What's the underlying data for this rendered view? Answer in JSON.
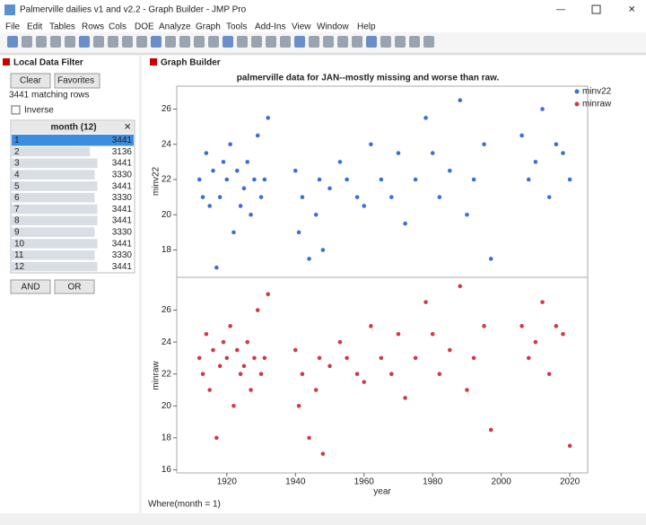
{
  "window": {
    "title": "Palmerville dailies v1 and v2.2 - Graph Builder - JMP Pro",
    "menu": [
      "File",
      "Edit",
      "Tables",
      "Rows",
      "Cols",
      "DOE",
      "Analyze",
      "Graph",
      "Tools",
      "Add-Ins",
      "View",
      "Window",
      "Help"
    ]
  },
  "filter": {
    "header": "Local Data Filter",
    "clear": "Clear",
    "favorites": "Favorites",
    "matching": "3441 matching rows",
    "inverse": "Inverse",
    "column": "month (12)",
    "rows": [
      {
        "level": "1",
        "count": 3441
      },
      {
        "level": "2",
        "count": 3136
      },
      {
        "level": "3",
        "count": 3441
      },
      {
        "level": "4",
        "count": 3330
      },
      {
        "level": "5",
        "count": 3441
      },
      {
        "level": "6",
        "count": 3330
      },
      {
        "level": "7",
        "count": 3441
      },
      {
        "level": "8",
        "count": 3441
      },
      {
        "level": "9",
        "count": 3330
      },
      {
        "level": "10",
        "count": 3441
      },
      {
        "level": "11",
        "count": 3330
      },
      {
        "level": "12",
        "count": 3441
      }
    ],
    "and": "AND",
    "or": "OR"
  },
  "graph_builder": {
    "header": "Graph Builder"
  },
  "status": "Where(month = 1)",
  "chart_data": {
    "type": "scatter",
    "title": "palmerville data for JAN--mostly missing and worse than raw.",
    "x_label": "year",
    "xlim": [
      1905.4,
      2025.2
    ],
    "xticks": [
      1920,
      1940,
      1960,
      1980,
      2000,
      2020
    ],
    "panels": [
      {
        "y_label": "minv22",
        "ylim": [
          16.5,
          27.3
        ],
        "yticks": [
          18,
          20,
          22,
          24,
          26
        ],
        "series": {
          "name": "minv22",
          "color": "#3a6fd8",
          "x": [
            1912,
            1913,
            1914,
            1915,
            1916,
            1917,
            1918,
            1919,
            1920,
            1921,
            1922,
            1923,
            1924,
            1925,
            1926,
            1927,
            1928,
            1929,
            1930,
            1931,
            1932,
            1940,
            1941,
            1942,
            1944,
            1946,
            1947,
            1948,
            1950,
            1953,
            1955,
            1958,
            1960,
            1962,
            1965,
            1968,
            1970,
            1972,
            1975,
            1978,
            1980,
            1982,
            1985,
            1988,
            1990,
            1992,
            1995,
            1997,
            2006,
            2008,
            2010,
            2012,
            2014,
            2016,
            2018,
            2020
          ],
          "y": [
            22,
            21,
            23.5,
            20.5,
            22.5,
            17,
            21,
            23,
            22,
            24,
            19,
            22.5,
            20.5,
            21.5,
            23,
            20,
            22,
            24.5,
            21,
            22,
            25.5,
            22.5,
            19,
            21,
            17.5,
            20,
            22,
            18,
            21.5,
            23,
            22,
            21,
            20.5,
            24,
            22,
            21,
            23.5,
            19.5,
            22,
            25.5,
            23.5,
            21,
            22.5,
            26.5,
            20,
            22,
            24,
            17.5,
            24.5,
            22,
            23,
            26,
            21,
            24,
            23.5,
            22
          ]
        }
      },
      {
        "y_label": "minraw",
        "ylim": [
          15.8,
          28
        ],
        "yticks": [
          16,
          18,
          20,
          22,
          24,
          26
        ],
        "series": {
          "name": "minraw",
          "color": "#d0394e",
          "x": [
            1912,
            1913,
            1914,
            1915,
            1916,
            1917,
            1918,
            1919,
            1920,
            1921,
            1922,
            1923,
            1924,
            1925,
            1926,
            1927,
            1928,
            1929,
            1930,
            1931,
            1932,
            1940,
            1941,
            1942,
            1944,
            1946,
            1947,
            1948,
            1950,
            1953,
            1955,
            1958,
            1960,
            1962,
            1965,
            1968,
            1970,
            1972,
            1975,
            1978,
            1980,
            1982,
            1985,
            1988,
            1990,
            1992,
            1995,
            1997,
            2006,
            2008,
            2010,
            2012,
            2014,
            2016,
            2018,
            2020
          ],
          "y": [
            23,
            22,
            24.5,
            21,
            23.5,
            18,
            22.5,
            24,
            23,
            25,
            20,
            23.5,
            22,
            22.5,
            24,
            21,
            23,
            26,
            22,
            23,
            27,
            23.5,
            20,
            22,
            18,
            21,
            23,
            17,
            22.5,
            24,
            23,
            22,
            21.5,
            25,
            23,
            22,
            24.5,
            20.5,
            23,
            26.5,
            24.5,
            22,
            23.5,
            27.5,
            21,
            23,
            25,
            18.5,
            25,
            23,
            24,
            26.5,
            22,
            25,
            24.5,
            17.5
          ]
        }
      }
    ]
  }
}
